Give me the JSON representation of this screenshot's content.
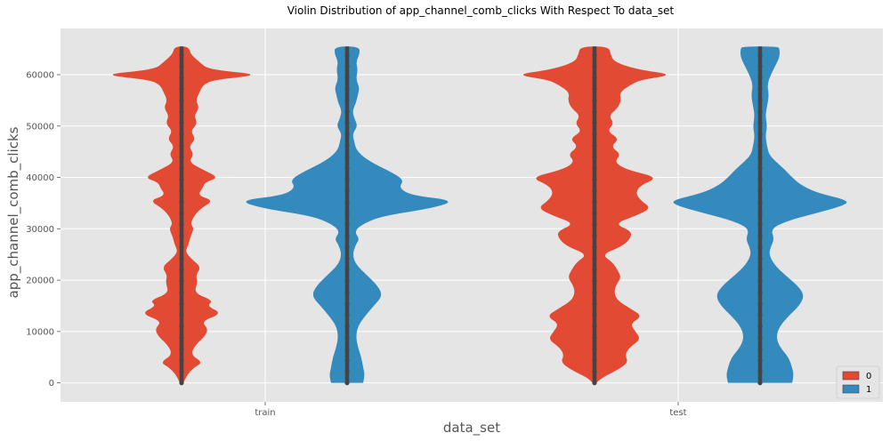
{
  "chart_data": {
    "type": "violin",
    "title": "Violin Distribution of app_channel_comb_clicks With Respect To data_set",
    "xlabel": "data_set",
    "ylabel": "app_channel_comb_clicks",
    "categories": [
      "train",
      "test"
    ],
    "ylim": [
      -3700,
      69000
    ],
    "yticks": [
      0,
      10000,
      20000,
      30000,
      40000,
      50000,
      60000
    ],
    "grid": true,
    "legend": {
      "placement": "bottom-right",
      "entries": [
        "0",
        "1"
      ]
    },
    "colors": {
      "0": "#e24a33",
      "1": "#348abd",
      "background": "#e5e5e5",
      "grid": "#ffffff",
      "points": "#444444"
    },
    "series": [
      {
        "name": "0",
        "violins": [
          {
            "category": "train",
            "range": [
              0,
              65500
            ],
            "density_profile": [
              [
                0,
                2
              ],
              [
                1500,
                6
              ],
              [
                3000,
                14
              ],
              [
                4000,
                24
              ],
              [
                5500,
                10
              ],
              [
                7500,
                16
              ],
              [
                9000,
                26
              ],
              [
                10500,
                30
              ],
              [
                12000,
                22
              ],
              [
                13500,
                46
              ],
              [
                15000,
                28
              ],
              [
                16000,
                36
              ],
              [
                17500,
                14
              ],
              [
                19500,
                18
              ],
              [
                21000,
                16
              ],
              [
                22500,
                22
              ],
              [
                24000,
                12
              ],
              [
                25500,
                4
              ],
              [
                27000,
                8
              ],
              [
                28500,
                10
              ],
              [
                30000,
                14
              ],
              [
                31000,
                10
              ],
              [
                32500,
                14
              ],
              [
                34000,
                22
              ],
              [
                35500,
                36
              ],
              [
                36500,
                18
              ],
              [
                38000,
                24
              ],
              [
                39000,
                26
              ],
              [
                40000,
                42
              ],
              [
                41500,
                24
              ],
              [
                43000,
                8
              ],
              [
                44500,
                14
              ],
              [
                46000,
                8
              ],
              [
                47500,
                16
              ],
              [
                49000,
                10
              ],
              [
                50500,
                18
              ],
              [
                52000,
                14
              ],
              [
                53500,
                20
              ],
              [
                55000,
                16
              ],
              [
                56500,
                20
              ],
              [
                58000,
                24
              ],
              [
                59000,
                36
              ],
              [
                60000,
                92
              ],
              [
                61000,
                30
              ],
              [
                62500,
                20
              ],
              [
                64000,
                10
              ],
              [
                65500,
                8
              ]
            ]
          },
          {
            "category": "test",
            "range": [
              0,
              65500
            ],
            "density_profile": [
              [
                0,
                2
              ],
              [
                1000,
                8
              ],
              [
                2500,
                26
              ],
              [
                4000,
                38
              ],
              [
                5500,
                34
              ],
              [
                7000,
                40
              ],
              [
                8500,
                52
              ],
              [
                10000,
                46
              ],
              [
                11500,
                40
              ],
              [
                13000,
                54
              ],
              [
                14500,
                40
              ],
              [
                16000,
                26
              ],
              [
                17500,
                22
              ],
              [
                19000,
                24
              ],
              [
                20500,
                30
              ],
              [
                22000,
                26
              ],
              [
                23500,
                20
              ],
              [
                25000,
                8
              ],
              [
                26500,
                30
              ],
              [
                28000,
                40
              ],
              [
                29500,
                42
              ],
              [
                31000,
                22
              ],
              [
                32500,
                46
              ],
              [
                34000,
                64
              ],
              [
                35500,
                52
              ],
              [
                37000,
                46
              ],
              [
                38500,
                52
              ],
              [
                40000,
                72
              ],
              [
                41500,
                36
              ],
              [
                43000,
                22
              ],
              [
                44500,
                30
              ],
              [
                46000,
                18
              ],
              [
                47500,
                28
              ],
              [
                49000,
                14
              ],
              [
                50500,
                22
              ],
              [
                52000,
                16
              ],
              [
                53500,
                26
              ],
              [
                55000,
                30
              ],
              [
                56500,
                28
              ],
              [
                58000,
                40
              ],
              [
                59000,
                52
              ],
              [
                60000,
                90
              ],
              [
                61000,
                48
              ],
              [
                62500,
                22
              ],
              [
                64000,
                18
              ],
              [
                65500,
                16
              ]
            ]
          }
        ]
      },
      {
        "name": "1",
        "violins": [
          {
            "category": "train",
            "range": [
              0,
              65500
            ],
            "density_profile": [
              [
                0,
                18
              ],
              [
                1500,
                20
              ],
              [
                3000,
                18
              ],
              [
                5000,
                16
              ],
              [
                7000,
                12
              ],
              [
                9000,
                10
              ],
              [
                11000,
                12
              ],
              [
                13000,
                20
              ],
              [
                15000,
                30
              ],
              [
                17000,
                40
              ],
              [
                19000,
                34
              ],
              [
                21000,
                22
              ],
              [
                23000,
                10
              ],
              [
                25000,
                6
              ],
              [
                27000,
                10
              ],
              [
                28000,
                14
              ],
              [
                29500,
                8
              ],
              [
                31000,
                18
              ],
              [
                32500,
                40
              ],
              [
                34000,
                96
              ],
              [
                35500,
                122
              ],
              [
                36500,
                72
              ],
              [
                38000,
                58
              ],
              [
                39500,
                64
              ],
              [
                41000,
                50
              ],
              [
                42500,
                32
              ],
              [
                44000,
                18
              ],
              [
                45500,
                10
              ],
              [
                47000,
                8
              ],
              [
                48500,
                6
              ],
              [
                50000,
                12
              ],
              [
                51500,
                8
              ],
              [
                53000,
                6
              ],
              [
                54500,
                10
              ],
              [
                56000,
                12
              ],
              [
                57500,
                14
              ],
              [
                59000,
                10
              ],
              [
                61000,
                12
              ],
              [
                62500,
                10
              ],
              [
                64000,
                14
              ],
              [
                65500,
                14
              ]
            ]
          },
          {
            "category": "test",
            "range": [
              0,
              65500
            ],
            "density_profile": [
              [
                0,
                36
              ],
              [
                1500,
                38
              ],
              [
                3000,
                36
              ],
              [
                5000,
                32
              ],
              [
                7000,
                22
              ],
              [
                9000,
                18
              ],
              [
                11000,
                22
              ],
              [
                13000,
                32
              ],
              [
                15000,
                44
              ],
              [
                17000,
                50
              ],
              [
                19000,
                42
              ],
              [
                21000,
                28
              ],
              [
                23000,
                16
              ],
              [
                25000,
                10
              ],
              [
                26500,
                12
              ],
              [
                28000,
                16
              ],
              [
                30000,
                12
              ],
              [
                31500,
                30
              ],
              [
                33000,
                62
              ],
              [
                34500,
                94
              ],
              [
                35500,
                100
              ],
              [
                37000,
                64
              ],
              [
                38500,
                46
              ],
              [
                40000,
                36
              ],
              [
                41500,
                28
              ],
              [
                43000,
                18
              ],
              [
                44500,
                10
              ],
              [
                46000,
                8
              ],
              [
                48000,
                6
              ],
              [
                50000,
                8
              ],
              [
                52000,
                6
              ],
              [
                54000,
                8
              ],
              [
                56000,
                10
              ],
              [
                58000,
                8
              ],
              [
                60000,
                12
              ],
              [
                62000,
                18
              ],
              [
                63500,
                22
              ],
              [
                65000,
                22
              ],
              [
                65500,
                20
              ]
            ]
          }
        ]
      }
    ]
  }
}
